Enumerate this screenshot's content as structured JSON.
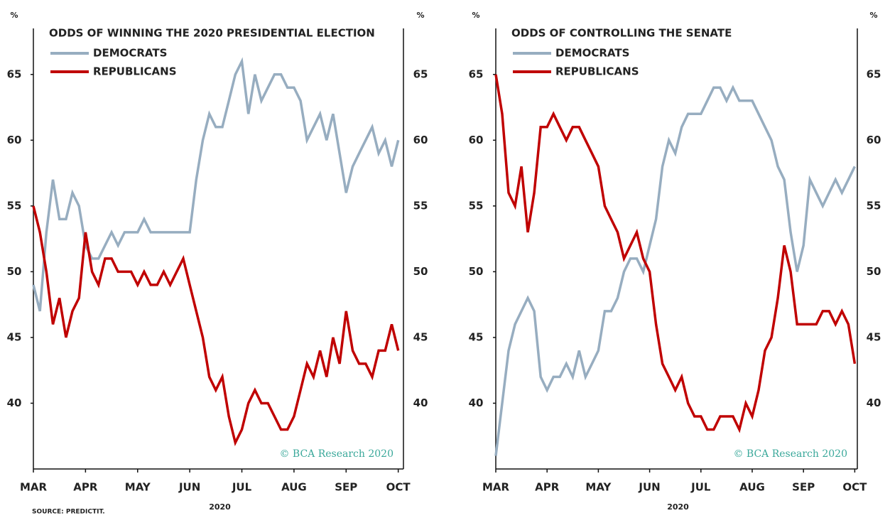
{
  "source": "SOURCE: PREDICTIT.",
  "chart_data": [
    {
      "type": "line",
      "title": "ODDS OF WINNING THE 2020 PRESIDENTIAL ELECTION",
      "y_unit": "%",
      "x_label": "2020",
      "annotation": "© BCA Research 2020",
      "xlim": [
        0,
        7.1
      ],
      "ylim": [
        35,
        68.5
      ],
      "yticks": [
        40,
        45,
        50,
        55,
        60,
        65
      ],
      "xticks": [
        {
          "value": 0,
          "label": "MAR"
        },
        {
          "value": 1,
          "label": "APR"
        },
        {
          "value": 2,
          "label": "MAY"
        },
        {
          "value": 3,
          "label": "JUN"
        },
        {
          "value": 4,
          "label": "JUL"
        },
        {
          "value": 5,
          "label": "AUG"
        },
        {
          "value": 6,
          "label": "SEP"
        },
        {
          "value": 7,
          "label": "OCT"
        }
      ],
      "x": [
        0,
        0.125,
        0.25,
        0.375,
        0.5,
        0.625,
        0.75,
        0.875,
        1,
        1.125,
        1.25,
        1.375,
        1.5,
        1.625,
        1.75,
        1.875,
        2,
        2.125,
        2.25,
        2.375,
        2.5,
        2.625,
        2.75,
        2.875,
        3,
        3.125,
        3.25,
        3.375,
        3.5,
        3.625,
        3.75,
        3.875,
        4,
        4.125,
        4.25,
        4.375,
        4.5,
        4.625,
        4.75,
        4.875,
        5,
        5.125,
        5.25,
        5.375,
        5.5,
        5.625,
        5.75,
        5.875,
        6,
        6.125,
        6.25,
        6.375,
        6.5,
        6.625,
        6.75,
        6.875,
        7
      ],
      "series": [
        {
          "name": "DEMOCRATS",
          "color": "#97adc0",
          "values": [
            49,
            47,
            53,
            57,
            54,
            54,
            56,
            55,
            52,
            51,
            51,
            52,
            53,
            52,
            53,
            53,
            53,
            54,
            53,
            53,
            53,
            53,
            53,
            53,
            53,
            57,
            60,
            62,
            61,
            61,
            63,
            65,
            66,
            62,
            65,
            63,
            64,
            65,
            65,
            64,
            64,
            63,
            60,
            61,
            62,
            60,
            62,
            59,
            56,
            58,
            59,
            60,
            61,
            59,
            60,
            58,
            60
          ]
        },
        {
          "name": "REPUBLICANS",
          "color": "#c00000",
          "values": [
            55,
            53,
            50,
            46,
            48,
            45,
            47,
            48,
            53,
            50,
            49,
            51,
            51,
            50,
            50,
            50,
            49,
            50,
            49,
            49,
            50,
            49,
            50,
            51,
            49,
            47,
            45,
            42,
            41,
            42,
            39,
            37,
            38,
            40,
            41,
            40,
            40,
            39,
            38,
            38,
            39,
            41,
            43,
            42,
            44,
            42,
            45,
            43,
            47,
            44,
            43,
            43,
            42,
            44,
            44,
            46,
            44
          ]
        }
      ]
    },
    {
      "type": "line",
      "title": "ODDS OF CONTROLLING THE SENATE",
      "y_unit": "%",
      "x_label": "2020",
      "annotation": "© BCA Research 2020",
      "xlim": [
        0,
        7.05
      ],
      "ylim": [
        35,
        68.5
      ],
      "yticks": [
        40,
        45,
        50,
        55,
        60,
        65
      ],
      "xticks": [
        {
          "value": 0,
          "label": "MAR"
        },
        {
          "value": 1,
          "label": "APR"
        },
        {
          "value": 2,
          "label": "MAY"
        },
        {
          "value": 3,
          "label": "JUN"
        },
        {
          "value": 4,
          "label": "JUL"
        },
        {
          "value": 5,
          "label": "AUG"
        },
        {
          "value": 6,
          "label": "SEP"
        },
        {
          "value": 7,
          "label": "OCT"
        }
      ],
      "x": [
        0,
        0.125,
        0.25,
        0.375,
        0.5,
        0.625,
        0.75,
        0.875,
        1,
        1.125,
        1.25,
        1.375,
        1.5,
        1.625,
        1.75,
        1.875,
        2,
        2.125,
        2.25,
        2.375,
        2.5,
        2.625,
        2.75,
        2.875,
        3,
        3.125,
        3.25,
        3.375,
        3.5,
        3.625,
        3.75,
        3.875,
        4,
        4.125,
        4.25,
        4.375,
        4.5,
        4.625,
        4.75,
        4.875,
        5,
        5.125,
        5.25,
        5.375,
        5.5,
        5.625,
        5.75,
        5.875,
        6,
        6.125,
        6.25,
        6.375,
        6.5,
        6.625,
        6.75,
        6.875,
        7
      ],
      "series": [
        {
          "name": "DEMOCRATS",
          "color": "#97adc0",
          "values": [
            36,
            40,
            44,
            46,
            47,
            48,
            47,
            42,
            41,
            42,
            42,
            43,
            42,
            44,
            42,
            43,
            44,
            47,
            47,
            48,
            50,
            51,
            51,
            50,
            52,
            54,
            58,
            60,
            59,
            61,
            62,
            62,
            62,
            63,
            64,
            64,
            63,
            64,
            63,
            63,
            63,
            62,
            61,
            60,
            58,
            57,
            53,
            50,
            52,
            57,
            56,
            55,
            56,
            57,
            56,
            57,
            58
          ]
        },
        {
          "name": "REPUBLICANS",
          "color": "#c00000",
          "values": [
            65,
            62,
            56,
            55,
            58,
            53,
            56,
            61,
            61,
            62,
            61,
            60,
            61,
            61,
            60,
            59,
            58,
            55,
            54,
            53,
            51,
            52,
            53,
            51,
            50,
            46,
            43,
            42,
            41,
            42,
            40,
            39,
            39,
            38,
            38,
            39,
            39,
            39,
            38,
            40,
            39,
            41,
            44,
            45,
            48,
            52,
            50,
            46,
            46,
            46,
            46,
            47,
            47,
            46,
            47,
            46,
            43
          ]
        }
      ]
    }
  ]
}
